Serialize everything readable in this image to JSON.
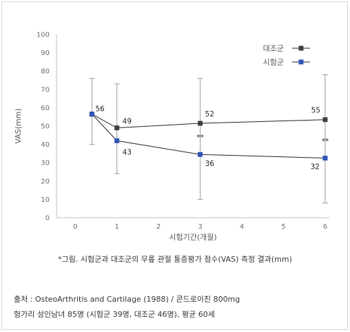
{
  "chart_data": {
    "type": "line",
    "ylabel": "VAS(mm)",
    "xlabel": "시험기간(개월)",
    "x_ticks": [
      "0",
      "1",
      "2",
      "3",
      "4",
      "5",
      "6"
    ],
    "y_ticks": [
      "0",
      "10",
      "20",
      "30",
      "40",
      "50",
      "60",
      "70",
      "80",
      "90",
      "100"
    ],
    "xlim": [
      -0.45,
      6.1
    ],
    "ylim": [
      0,
      100
    ],
    "grid": false,
    "legend_position": "top-right",
    "series": [
      {
        "name": "대조군",
        "color": "#404040",
        "x": [
          0.4,
          1,
          3,
          6
        ],
        "values": [
          56,
          49,
          52,
          55
        ],
        "plot_y": [
          56.5,
          49,
          51.5,
          53.5
        ],
        "error_low": [
          40,
          24,
          10,
          8
        ],
        "error_high": [
          76,
          73,
          76,
          78
        ],
        "labels": [
          "56",
          "49",
          "52",
          "55"
        ]
      },
      {
        "name": "시험군",
        "color": "#2e56b7",
        "x": [
          0.4,
          1,
          3,
          6
        ],
        "values": [
          56,
          43,
          36,
          32
        ],
        "plot_y": [
          56.5,
          42,
          34.5,
          32.5
        ],
        "labels": [
          "",
          "43",
          "36",
          "32"
        ]
      }
    ],
    "annotations": [
      {
        "x": 3,
        "y": 44,
        "text": "**"
      },
      {
        "x": 6,
        "y": 42,
        "text": "**"
      }
    ]
  },
  "caption": "*그림. 시험군과 대조군의 무릎 관절 통증평가 점수(VAS) 측정 결과(mm)",
  "source_line1": "출처 : OsteoArthritis and Cartilage (1988) / 콘드로이친 800mg",
  "source_line2": "헝가리 성인남녀 85명 (시험군 39명, 대조군 46명), 평균 60세"
}
